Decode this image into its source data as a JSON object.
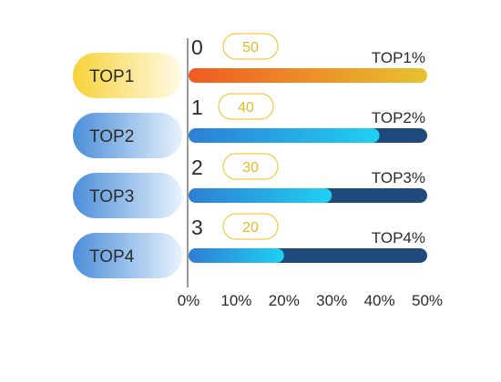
{
  "chart_data": {
    "type": "bar",
    "orientation": "horizontal",
    "categories": [
      "TOP1",
      "TOP2",
      "TOP3",
      "TOP4"
    ],
    "index_labels": [
      "0",
      "1",
      "2",
      "3"
    ],
    "badges": [
      "50",
      "40",
      "30",
      "20"
    ],
    "bar_labels": [
      "TOP1%",
      "TOP2%",
      "TOP3%",
      "TOP4%"
    ],
    "values": [
      50,
      40,
      30,
      20
    ],
    "xlim": [
      0,
      50
    ],
    "x_ticks": [
      "0%",
      "10%",
      "20%",
      "30%",
      "40%",
      "50%"
    ],
    "grid": false,
    "colors": {
      "track": "#1f4a7d",
      "top_fill_start": "#f05a22",
      "top_fill_end": "#e8c22e",
      "blue_fill_start": "#2e7ed4",
      "blue_fill_end": "#1fd0f2",
      "badge_text": "#e5b824",
      "badge_border": "#f0c944",
      "label_gold_start": "#f7d23a",
      "label_gold_end": "#fffbe8",
      "label_blue_start": "#4b8ed8",
      "label_blue_end": "#e8f2fd",
      "text": "#2b2b2b",
      "axis": "#333333"
    }
  }
}
